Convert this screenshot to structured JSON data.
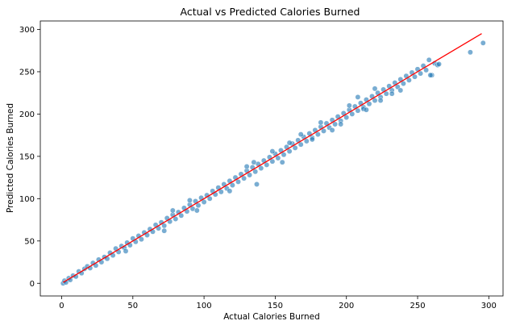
{
  "chart_data": {
    "type": "scatter",
    "title": "Actual vs Predicted Calories Burned",
    "xlabel": "Actual Calories Burned",
    "ylabel": "Predicted Calories Burned",
    "xlim": [
      -15,
      310
    ],
    "ylim": [
      -15,
      310
    ],
    "xticks": [
      0,
      50,
      100,
      150,
      200,
      250,
      300
    ],
    "yticks": [
      0,
      50,
      100,
      150,
      200,
      250,
      300
    ],
    "grid": false,
    "point_color": "#1f77b4",
    "line_color": "#ff0000",
    "reference_line": {
      "x": [
        1,
        295
      ],
      "y": [
        1,
        295
      ]
    },
    "series": [
      {
        "x": [
          1,
          2,
          3,
          5,
          6,
          8,
          10,
          12,
          14,
          16,
          18,
          20,
          22,
          24,
          26,
          28,
          30,
          32,
          34,
          36,
          38,
          40,
          42,
          44,
          46,
          48,
          50,
          52,
          54,
          56,
          58,
          60,
          62,
          64,
          66,
          68,
          70,
          72,
          74,
          76,
          78,
          80,
          82,
          84,
          86,
          88,
          90,
          92,
          94,
          96,
          98,
          100,
          102,
          104,
          106,
          108,
          110,
          112,
          114,
          116,
          118,
          120,
          122,
          124,
          126,
          128,
          130,
          132,
          134,
          136,
          138,
          140,
          142,
          144,
          146,
          148,
          150,
          152,
          154,
          156,
          158,
          160,
          162,
          164,
          166,
          168,
          170,
          172,
          174,
          176,
          178,
          180,
          182,
          184,
          186,
          188,
          190,
          192,
          194,
          196,
          198,
          200,
          202,
          204,
          206,
          208,
          210,
          212,
          214,
          216,
          218,
          220,
          222,
          224,
          226,
          228,
          230,
          232,
          234,
          236,
          238,
          240,
          242,
          244,
          246,
          248,
          250,
          252,
          254,
          256,
          258,
          260,
          262,
          264,
          265,
          287,
          296,
          45,
          72,
          95,
          118,
          137,
          155,
          168,
          182,
          196,
          208,
          224,
          135,
          176,
          212,
          238,
          259,
          78,
          90,
          130,
          148,
          160,
          190,
          202,
          214,
          220,
          232
        ],
        "y": [
          0,
          3,
          1,
          6,
          4,
          9,
          8,
          14,
          12,
          17,
          20,
          18,
          24,
          21,
          28,
          25,
          31,
          29,
          36,
          33,
          41,
          37,
          44,
          42,
          48,
          45,
          53,
          49,
          56,
          52,
          60,
          57,
          64,
          61,
          69,
          65,
          72,
          68,
          77,
          73,
          81,
          76,
          84,
          80,
          89,
          85,
          93,
          88,
          97,
          92,
          101,
          96,
          104,
          100,
          109,
          105,
          113,
          108,
          117,
          112,
          121,
          116,
          125,
          120,
          129,
          124,
          133,
          128,
          137,
          132,
          141,
          136,
          145,
          140,
          149,
          144,
          153,
          148,
          157,
          152,
          161,
          156,
          165,
          160,
          169,
          164,
          173,
          168,
          177,
          172,
          181,
          176,
          185,
          180,
          189,
          184,
          193,
          188,
          197,
          192,
          201,
          196,
          205,
          200,
          209,
          204,
          213,
          208,
          217,
          212,
          221,
          216,
          225,
          220,
          229,
          224,
          233,
          228,
          237,
          232,
          241,
          236,
          245,
          240,
          249,
          244,
          253,
          248,
          257,
          252,
          264,
          246,
          260,
          258,
          259,
          273,
          284,
          38,
          62,
          86,
          109,
          117,
          143,
          176,
          190,
          188,
          220,
          216,
          143,
          170,
          206,
          228,
          246,
          86,
          98,
          138,
          156,
          166,
          181,
          210,
          205,
          230,
          224
        ]
      }
    ]
  }
}
